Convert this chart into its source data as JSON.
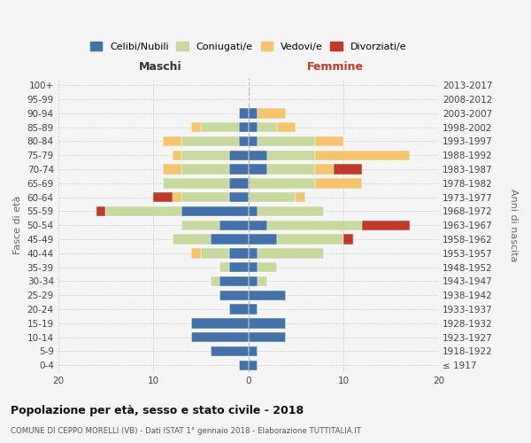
{
  "age_groups": [
    "100+",
    "95-99",
    "90-94",
    "85-89",
    "80-84",
    "75-79",
    "70-74",
    "65-69",
    "60-64",
    "55-59",
    "50-54",
    "45-49",
    "40-44",
    "35-39",
    "30-34",
    "25-29",
    "20-24",
    "15-19",
    "10-14",
    "5-9",
    "0-4"
  ],
  "birth_years": [
    "≤ 1917",
    "1918-1922",
    "1923-1927",
    "1928-1932",
    "1933-1937",
    "1938-1942",
    "1943-1947",
    "1948-1952",
    "1953-1957",
    "1958-1962",
    "1963-1967",
    "1968-1972",
    "1973-1977",
    "1978-1982",
    "1983-1987",
    "1988-1992",
    "1993-1997",
    "1998-2002",
    "2003-2007",
    "2008-2012",
    "2013-2017"
  ],
  "maschi": {
    "celibi": [
      0,
      0,
      1,
      1,
      1,
      2,
      2,
      2,
      2,
      7,
      3,
      4,
      2,
      2,
      3,
      3,
      2,
      6,
      6,
      4,
      1
    ],
    "coniugati": [
      0,
      0,
      0,
      4,
      6,
      5,
      5,
      7,
      5,
      8,
      4,
      4,
      3,
      1,
      1,
      0,
      0,
      0,
      0,
      0,
      0
    ],
    "vedovi": [
      0,
      0,
      0,
      1,
      2,
      1,
      2,
      0,
      1,
      0,
      0,
      0,
      1,
      0,
      0,
      0,
      0,
      0,
      0,
      0,
      0
    ],
    "divorziati": [
      0,
      0,
      0,
      0,
      0,
      0,
      0,
      0,
      2,
      1,
      0,
      0,
      0,
      0,
      0,
      0,
      0,
      0,
      0,
      0,
      0
    ]
  },
  "femmine": {
    "nubili": [
      0,
      0,
      1,
      1,
      1,
      2,
      2,
      0,
      0,
      1,
      2,
      3,
      1,
      1,
      1,
      4,
      1,
      4,
      4,
      1,
      1
    ],
    "coniugate": [
      0,
      0,
      0,
      2,
      6,
      5,
      5,
      7,
      5,
      7,
      10,
      7,
      7,
      2,
      1,
      0,
      0,
      0,
      0,
      0,
      0
    ],
    "vedove": [
      0,
      0,
      3,
      2,
      3,
      10,
      2,
      5,
      1,
      0,
      0,
      0,
      0,
      0,
      0,
      0,
      0,
      0,
      0,
      0,
      0
    ],
    "divorziate": [
      0,
      0,
      0,
      0,
      0,
      0,
      3,
      0,
      0,
      0,
      5,
      1,
      0,
      0,
      0,
      0,
      0,
      0,
      0,
      0,
      0
    ]
  },
  "colors": {
    "celibi": "#4472a8",
    "coniugati": "#c8d9a0",
    "vedovi": "#f5c46e",
    "divorziati": "#c0392b"
  },
  "xlim": 20,
  "title": "Popolazione per età, sesso e stato civile - 2018",
  "subtitle": "COMUNE DI CEPPO MORELLI (VB) - Dati ISTAT 1° gennaio 2018 - Elaborazione TUTTITALIA.IT",
  "legend_labels": [
    "Celibi/Nubili",
    "Coniugati/e",
    "Vedovi/e",
    "Divorziati/e"
  ],
  "xlabel_left": "Maschi",
  "xlabel_right": "Femmine",
  "ylabel_left": "Fasce di età",
  "ylabel_right": "Anni di nascita",
  "bg_color": "#f5f5f5"
}
